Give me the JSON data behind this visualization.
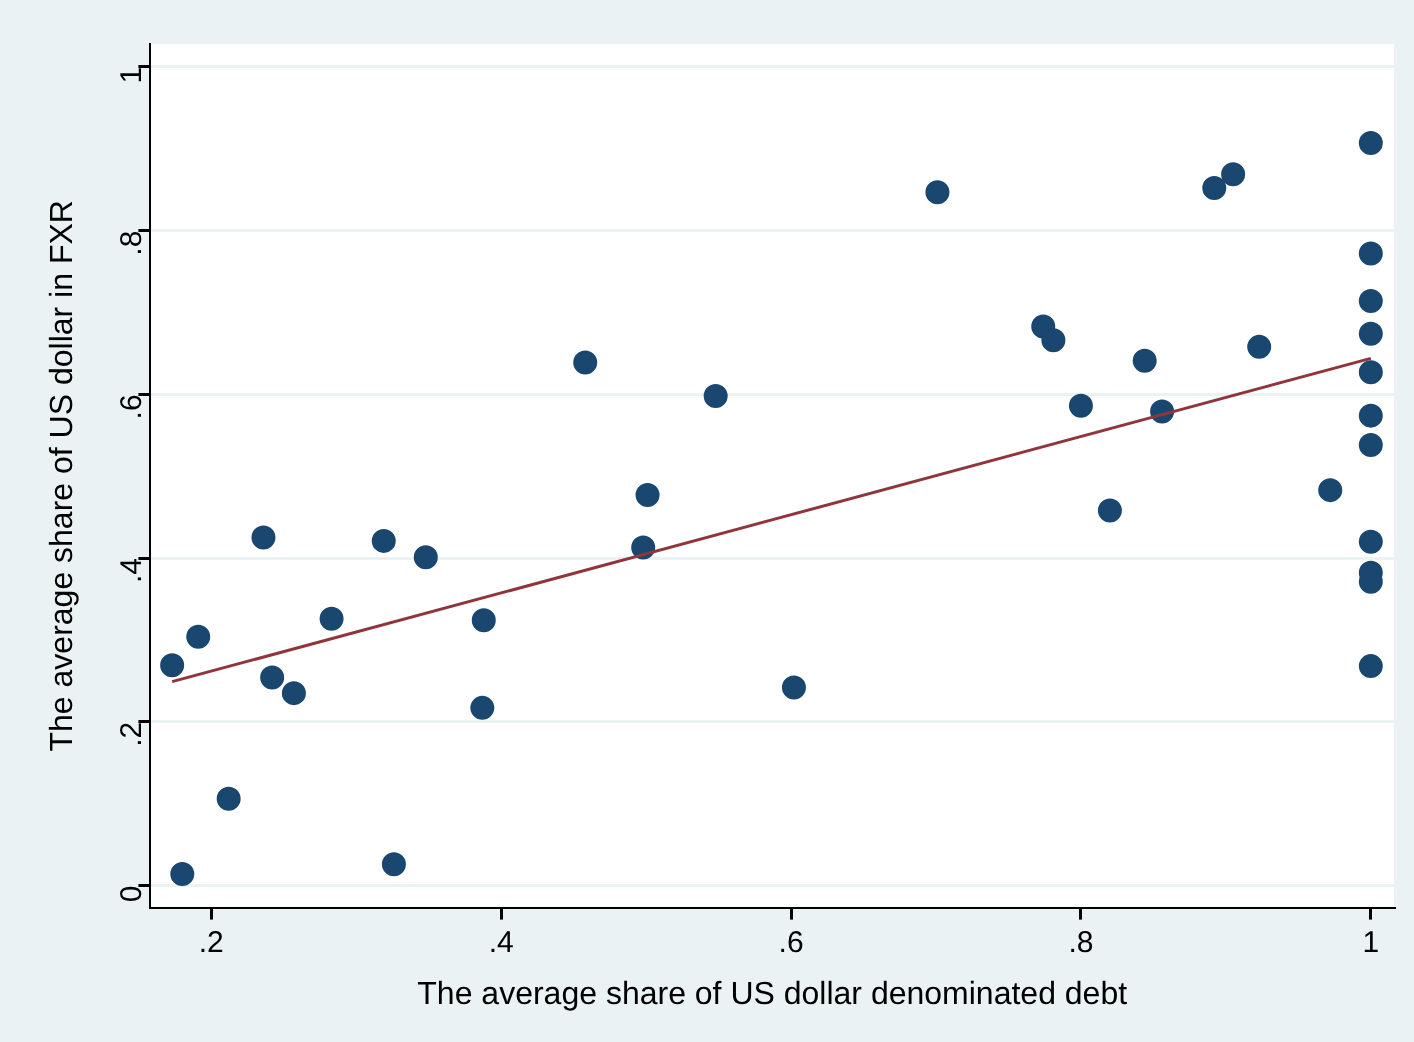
{
  "chart_data": {
    "type": "scatter",
    "xlabel": "The average share of US dollar denominated debt",
    "ylabel": "The average share of US dollar in FXR",
    "xlim": [
      0.158,
      1.016
    ],
    "ylim": [
      -0.027,
      1.028
    ],
    "xticks": [
      {
        "value": 0.2,
        "label": ".2"
      },
      {
        "value": 0.4,
        "label": ".4"
      },
      {
        "value": 0.6,
        "label": ".6"
      },
      {
        "value": 0.8,
        "label": ".8"
      },
      {
        "value": 1,
        "label": "1"
      }
    ],
    "yticks": [
      {
        "value": 0,
        "label": "0"
      },
      {
        "value": 0.2,
        "label": ".2"
      },
      {
        "value": 0.4,
        "label": ".4"
      },
      {
        "value": 0.6,
        "label": ".6"
      },
      {
        "value": 0.8,
        "label": ".8"
      },
      {
        "value": 1,
        "label": "1"
      }
    ],
    "grid": "y",
    "legend": false,
    "marker": "circle",
    "series": [
      {
        "type": "scatter",
        "color": "#1a476f",
        "x": [
          0.173,
          0.18,
          0.191,
          0.212,
          0.236,
          0.242,
          0.257,
          0.283,
          0.319,
          0.326,
          0.348,
          0.388,
          0.387,
          0.458,
          0.498,
          0.501,
          0.548,
          0.602,
          0.701,
          0.774,
          0.781,
          0.8,
          0.82,
          0.844,
          0.856,
          0.892,
          0.905,
          0.923,
          0.972,
          1,
          1,
          1,
          1,
          1,
          1,
          1,
          1,
          1,
          1,
          1
        ],
        "values": [
          0.269,
          0.014,
          0.304,
          0.106,
          0.425,
          0.254,
          0.235,
          0.326,
          0.421,
          0.026,
          0.401,
          0.324,
          0.217,
          0.639,
          0.413,
          0.477,
          0.598,
          0.242,
          0.847,
          0.683,
          0.666,
          0.586,
          0.458,
          0.641,
          0.579,
          0.852,
          0.869,
          0.658,
          0.483,
          0.907,
          0.772,
          0.714,
          0.674,
          0.627,
          0.574,
          0.538,
          0.42,
          0.382,
          0.371,
          0.268
        ]
      },
      {
        "type": "line",
        "color": "#90353b",
        "x": [
          0.173,
          1
        ],
        "values": [
          0.249,
          0.644
        ],
        "marker": "none"
      }
    ]
  }
}
